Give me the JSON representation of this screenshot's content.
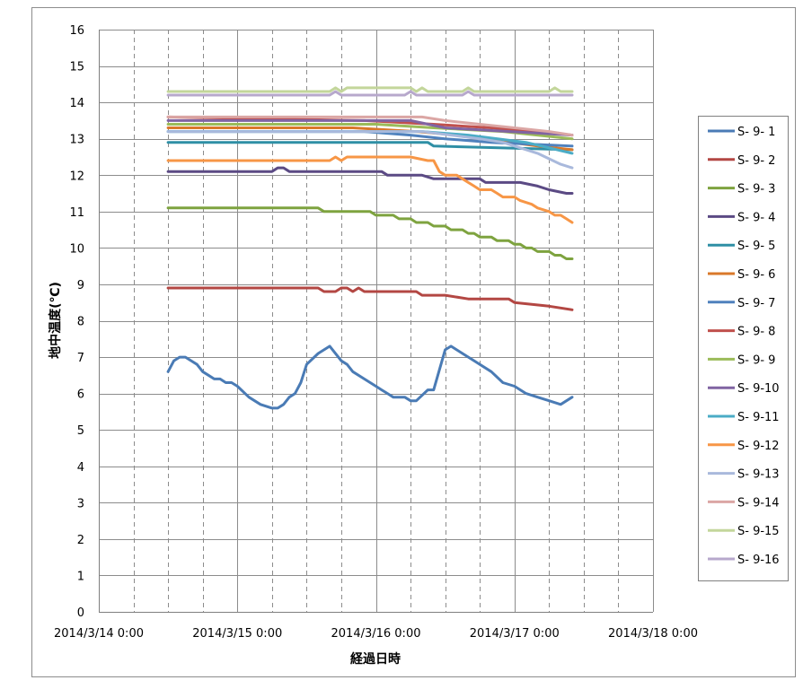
{
  "chart_data": {
    "type": "line",
    "title": "",
    "xlabel": "経過日時",
    "ylabel": "地中温度(℃)",
    "x_tick_labels": [
      "2014/3/14 0:00",
      "2014/3/15 0:00",
      "2014/3/16 0:00",
      "2014/3/17 0:00",
      "2014/3/18 0:00"
    ],
    "xlim": [
      "2014/3/14 0:00",
      "2014/3/18 0:00"
    ],
    "ylim": [
      0,
      16
    ],
    "y_ticks": [
      0,
      1,
      2,
      3,
      4,
      5,
      6,
      7,
      8,
      9,
      10,
      11,
      12,
      13,
      14,
      15,
      16
    ],
    "y_tick_labels": [
      "0",
      "1",
      "2",
      "3",
      "4",
      "5",
      "6",
      "7",
      "8",
      "9",
      "10",
      "11",
      "12",
      "13",
      "14",
      "15",
      "16"
    ],
    "grid": "horizontal solid, vertical solid at day marks and dashed at 6-hour marks",
    "legend": "right",
    "series": [
      {
        "name": "S- 9- 1",
        "color": "#4a7bb5",
        "x": [
          "2014/3/14 12:00",
          "2014/3/14 13:00",
          "2014/3/14 14:00",
          "2014/3/14 15:00",
          "2014/3/14 16:00",
          "2014/3/14 17:00",
          "2014/3/14 18:00",
          "2014/3/14 19:00",
          "2014/3/14 20:00",
          "2014/3/14 21:00",
          "2014/3/14 22:00",
          "2014/3/14 23:00",
          "2014/3/15 0:00",
          "2014/3/15 2:00",
          "2014/3/15 4:00",
          "2014/3/15 6:00",
          "2014/3/15 7:00",
          "2014/3/15 8:00",
          "2014/3/15 9:00",
          "2014/3/15 10:00",
          "2014/3/15 11:00",
          "2014/3/15 12:00",
          "2014/3/15 14:00",
          "2014/3/15 16:00",
          "2014/3/15 18:00",
          "2014/3/15 19:00",
          "2014/3/15 20:00",
          "2014/3/15 22:00",
          "2014/3/16 0:00",
          "2014/3/16 1:00",
          "2014/3/16 2:00",
          "2014/3/16 3:00",
          "2014/3/16 4:00",
          "2014/3/16 5:00",
          "2014/3/16 6:00",
          "2014/3/16 7:00",
          "2014/3/16 9:00",
          "2014/3/16 10:00",
          "2014/3/16 12:00",
          "2014/3/16 13:00",
          "2014/3/16 15:00",
          "2014/3/16 17:00",
          "2014/3/16 20:00",
          "2014/3/16 22:00",
          "2014/3/17 0:00",
          "2014/3/17 2:00",
          "2014/3/17 4:00",
          "2014/3/17 6:00",
          "2014/3/17 8:00",
          "2014/3/17 10:00"
        ],
        "y": [
          6.6,
          6.9,
          7.0,
          7.0,
          6.9,
          6.8,
          6.6,
          6.5,
          6.4,
          6.4,
          6.3,
          6.3,
          6.2,
          5.9,
          5.7,
          5.6,
          5.6,
          5.7,
          5.9,
          6.0,
          6.3,
          6.8,
          7.1,
          7.3,
          6.9,
          6.8,
          6.6,
          6.4,
          6.2,
          6.1,
          6.0,
          5.9,
          5.9,
          5.9,
          5.8,
          5.8,
          6.1,
          6.1,
          7.2,
          7.3,
          7.1,
          6.9,
          6.6,
          6.3,
          6.2,
          6.0,
          5.9,
          5.8,
          5.7,
          5.9
        ]
      },
      {
        "name": "S- 9- 2",
        "color": "#b34743",
        "x": [
          "2014/3/14 12:00",
          "2014/3/15 14:00",
          "2014/3/15 15:00",
          "2014/3/15 17:00",
          "2014/3/15 18:00",
          "2014/3/15 19:00",
          "2014/3/15 20:00",
          "2014/3/15 21:00",
          "2014/3/15 22:00",
          "2014/3/16 0:00",
          "2014/3/16 7:00",
          "2014/3/16 8:00",
          "2014/3/16 12:00",
          "2014/3/16 16:00",
          "2014/3/16 23:00",
          "2014/3/17 0:00",
          "2014/3/17 6:00",
          "2014/3/17 10:00"
        ],
        "y": [
          8.9,
          8.9,
          8.8,
          8.8,
          8.9,
          8.9,
          8.8,
          8.9,
          8.8,
          8.8,
          8.8,
          8.7,
          8.7,
          8.6,
          8.6,
          8.5,
          8.4,
          8.3
        ]
      },
      {
        "name": "S- 9- 3",
        "color": "#7ea33f",
        "x": [
          "2014/3/14 12:00",
          "2014/3/15 14:00",
          "2014/3/15 15:00",
          "2014/3/15 23:00",
          "2014/3/16 0:00",
          "2014/3/16 3:00",
          "2014/3/16 4:00",
          "2014/3/16 6:00",
          "2014/3/16 7:00",
          "2014/3/16 9:00",
          "2014/3/16 10:00",
          "2014/3/16 12:00",
          "2014/3/16 13:00",
          "2014/3/16 15:00",
          "2014/3/16 16:00",
          "2014/3/16 17:00",
          "2014/3/16 18:00",
          "2014/3/16 20:00",
          "2014/3/16 21:00",
          "2014/3/16 23:00",
          "2014/3/17 0:00",
          "2014/3/17 1:00",
          "2014/3/17 2:00",
          "2014/3/17 3:00",
          "2014/3/17 4:00",
          "2014/3/17 6:00",
          "2014/3/17 7:00",
          "2014/3/17 8:00",
          "2014/3/17 9:00",
          "2014/3/17 10:00"
        ],
        "y": [
          11.1,
          11.1,
          11.0,
          11.0,
          10.9,
          10.9,
          10.8,
          10.8,
          10.7,
          10.7,
          10.6,
          10.6,
          10.5,
          10.5,
          10.4,
          10.4,
          10.3,
          10.3,
          10.2,
          10.2,
          10.1,
          10.1,
          10.0,
          10.0,
          9.9,
          9.9,
          9.8,
          9.8,
          9.7,
          9.7
        ]
      },
      {
        "name": "S- 9- 4",
        "color": "#5b4a84",
        "x": [
          "2014/3/14 12:00",
          "2014/3/15 6:00",
          "2014/3/15 7:00",
          "2014/3/15 8:00",
          "2014/3/15 9:00",
          "2014/3/16 1:00",
          "2014/3/16 2:00",
          "2014/3/16 8:00",
          "2014/3/16 10:00",
          "2014/3/16 18:00",
          "2014/3/16 19:00",
          "2014/3/17 1:00",
          "2014/3/17 4:00",
          "2014/3/17 6:00",
          "2014/3/17 9:00",
          "2014/3/17 10:00"
        ],
        "y": [
          12.1,
          12.1,
          12.2,
          12.2,
          12.1,
          12.1,
          12.0,
          12.0,
          11.9,
          11.9,
          11.8,
          11.8,
          11.7,
          11.6,
          11.5,
          11.5
        ]
      },
      {
        "name": "S- 9- 5",
        "color": "#2f8fa5",
        "x": [
          "2014/3/14 12:00",
          "2014/3/16 9:00",
          "2014/3/16 10:00",
          "2014/3/17 10:00"
        ],
        "y": [
          12.9,
          12.9,
          12.8,
          12.7
        ]
      },
      {
        "name": "S- 9- 6",
        "color": "#d9782a",
        "x": [
          "2014/3/14 12:00",
          "2014/3/15 20:00",
          "2014/3/16 7:00",
          "2014/3/16 14:00",
          "2014/3/17 4:00",
          "2014/3/17 10:00"
        ],
        "y": [
          13.3,
          13.3,
          13.2,
          13.1,
          12.8,
          12.7
        ]
      },
      {
        "name": "S- 9- 7",
        "color": "#4f81bd",
        "x": [
          "2014/3/14 12:00",
          "2014/3/15 22:00",
          "2014/3/16 6:00",
          "2014/3/16 12:00",
          "2014/3/16 20:00",
          "2014/3/17 10:00"
        ],
        "y": [
          13.2,
          13.2,
          13.1,
          13.0,
          12.9,
          12.8
        ]
      },
      {
        "name": "S- 9- 8",
        "color": "#c0504d",
        "x": [
          "2014/3/14 12:00",
          "2014/3/15 22:00",
          "2014/3/16 10:00",
          "2014/3/16 20:00",
          "2014/3/17 10:00"
        ],
        "y": [
          13.6,
          13.5,
          13.4,
          13.3,
          13.1
        ]
      },
      {
        "name": "S- 9- 9",
        "color": "#9bbb59",
        "x": [
          "2014/3/14 12:00",
          "2014/3/16 0:00",
          "2014/3/16 10:00",
          "2014/3/16 22:00",
          "2014/3/17 10:00"
        ],
        "y": [
          13.4,
          13.4,
          13.3,
          13.2,
          13.0
        ]
      },
      {
        "name": "S- 9-10",
        "color": "#8064a2",
        "x": [
          "2014/3/14 12:00",
          "2014/3/16 6:00",
          "2014/3/16 12:00",
          "2014/3/17 10:00"
        ],
        "y": [
          13.5,
          13.5,
          13.3,
          13.1
        ]
      },
      {
        "name": "S- 9-11",
        "color": "#4bacc6",
        "x": [
          "2014/3/14 12:00",
          "2014/3/16 8:00",
          "2014/3/16 16:00",
          "2014/3/17 2:00",
          "2014/3/17 10:00"
        ],
        "y": [
          13.2,
          13.2,
          13.1,
          12.9,
          12.6
        ]
      },
      {
        "name": "S- 9-12",
        "color": "#f79646",
        "x": [
          "2014/3/14 12:00",
          "2014/3/15 16:00",
          "2014/3/15 17:00",
          "2014/3/15 18:00",
          "2014/3/15 19:00",
          "2014/3/16 6:00",
          "2014/3/16 9:00",
          "2014/3/16 10:00",
          "2014/3/16 11:00",
          "2014/3/16 12:00",
          "2014/3/16 14:00",
          "2014/3/16 15:00",
          "2014/3/16 16:00",
          "2014/3/16 17:00",
          "2014/3/16 18:00",
          "2014/3/16 20:00",
          "2014/3/16 21:00",
          "2014/3/16 22:00",
          "2014/3/17 0:00",
          "2014/3/17 1:00",
          "2014/3/17 3:00",
          "2014/3/17 4:00",
          "2014/3/17 6:00",
          "2014/3/17 7:00",
          "2014/3/17 8:00",
          "2014/3/17 9:00",
          "2014/3/17 10:00"
        ],
        "y": [
          12.4,
          12.4,
          12.5,
          12.4,
          12.5,
          12.5,
          12.4,
          12.4,
          12.1,
          12.0,
          12.0,
          11.9,
          11.8,
          11.7,
          11.6,
          11.6,
          11.5,
          11.4,
          11.4,
          11.3,
          11.2,
          11.1,
          11.0,
          10.9,
          10.9,
          10.8,
          10.7
        ]
      },
      {
        "name": "S- 9-13",
        "color": "#a9b9dc",
        "x": [
          "2014/3/14 12:00",
          "2014/3/16 8:00",
          "2014/3/16 18:00",
          "2014/3/16 22:00",
          "2014/3/17 4:00",
          "2014/3/17 8:00",
          "2014/3/17 10:00"
        ],
        "y": [
          13.2,
          13.2,
          13.0,
          12.9,
          12.6,
          12.3,
          12.2
        ]
      },
      {
        "name": "S- 9-14",
        "color": "#dba6a4",
        "x": [
          "2014/3/14 12:00",
          "2014/3/16 8:00",
          "2014/3/16 12:00",
          "2014/3/16 18:00",
          "2014/3/17 0:00",
          "2014/3/17 6:00",
          "2014/3/17 10:00"
        ],
        "y": [
          13.6,
          13.6,
          13.5,
          13.4,
          13.3,
          13.2,
          13.1
        ]
      },
      {
        "name": "S- 9-15",
        "color": "#c3d69b",
        "x": [
          "2014/3/14 12:00",
          "2014/3/15 16:00",
          "2014/3/15 17:00",
          "2014/3/15 18:00",
          "2014/3/15 19:00",
          "2014/3/16 6:00",
          "2014/3/16 7:00",
          "2014/3/16 8:00",
          "2014/3/16 9:00",
          "2014/3/16 15:00",
          "2014/3/16 16:00",
          "2014/3/16 17:00",
          "2014/3/16 18:00",
          "2014/3/17 6:00",
          "2014/3/17 7:00",
          "2014/3/17 8:00",
          "2014/3/17 9:00",
          "2014/3/17 10:00"
        ],
        "y": [
          14.3,
          14.3,
          14.4,
          14.3,
          14.4,
          14.4,
          14.3,
          14.4,
          14.3,
          14.3,
          14.4,
          14.3,
          14.3,
          14.3,
          14.4,
          14.3,
          14.3,
          14.3
        ]
      },
      {
        "name": "S- 9-16",
        "color": "#b7a8cc",
        "x": [
          "2014/3/14 12:00",
          "2014/3/15 16:00",
          "2014/3/15 17:00",
          "2014/3/15 18:00",
          "2014/3/16 5:00",
          "2014/3/16 6:00",
          "2014/3/16 7:00",
          "2014/3/16 15:00",
          "2014/3/16 16:00",
          "2014/3/16 17:00",
          "2014/3/17 10:00"
        ],
        "y": [
          14.2,
          14.2,
          14.3,
          14.2,
          14.2,
          14.3,
          14.2,
          14.2,
          14.3,
          14.2,
          14.2
        ]
      }
    ]
  }
}
